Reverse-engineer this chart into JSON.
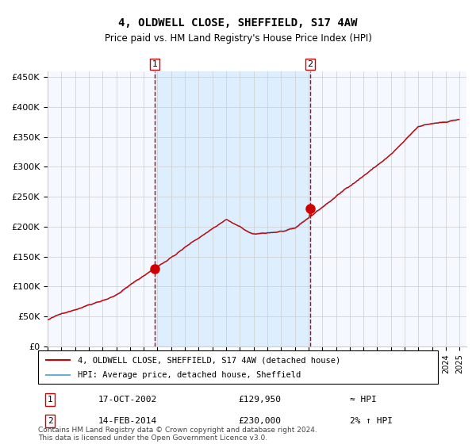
{
  "title": "4, OLDWELL CLOSE, SHEFFIELD, S17 4AW",
  "subtitle": "Price paid vs. HM Land Registry's House Price Index (HPI)",
  "ylabel_ticks": [
    "£0",
    "£50K",
    "£100K",
    "£150K",
    "£200K",
    "£250K",
    "£300K",
    "£350K",
    "£400K",
    "£450K"
  ],
  "ytick_values": [
    0,
    50000,
    100000,
    150000,
    200000,
    250000,
    300000,
    350000,
    400000,
    450000
  ],
  "ylim": [
    0,
    460000
  ],
  "xlim_start": 1995.0,
  "xlim_end": 2025.5,
  "sale1_date": 2002.79,
  "sale1_price": 129950,
  "sale1_label": "1",
  "sale1_text": "17-OCT-2002",
  "sale1_price_text": "£129,950",
  "sale1_note": "≈ HPI",
  "sale2_date": 2014.12,
  "sale2_price": 230000,
  "sale2_label": "2",
  "sale2_text": "14-FEB-2014",
  "sale2_price_text": "£230,000",
  "sale2_note": "2% ↑ HPI",
  "legend_line1": "4, OLDWELL CLOSE, SHEFFIELD, S17 4AW (detached house)",
  "legend_line2": "HPI: Average price, detached house, Sheffield",
  "footer": "Contains HM Land Registry data © Crown copyright and database right 2024.\nThis data is licensed under the Open Government Licence v3.0.",
  "hpi_color": "#6baed6",
  "price_color": "#cc0000",
  "vline_color": "#cc0000",
  "shade_color": "#ddeeff",
  "grid_color": "#cccccc",
  "bg_color": "#ffffff",
  "plot_bg": "#f5f8ff"
}
